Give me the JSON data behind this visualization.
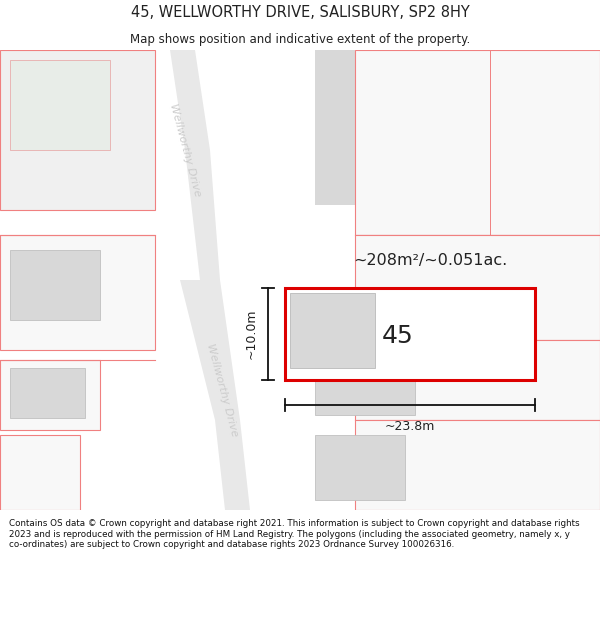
{
  "title_line1": "45, WELLWORTHY DRIVE, SALISBURY, SP2 8HY",
  "title_line2": "Map shows position and indicative extent of the property.",
  "footer_text": "Contains OS data © Crown copyright and database right 2021. This information is subject to Crown copyright and database rights 2023 and is reproduced with the permission of HM Land Registry. The polygons (including the associated geometry, namely x, y co-ordinates) are subject to Crown copyright and database rights 2023 Ordnance Survey 100026316.",
  "bg_color": "#ffffff",
  "area_text": "~208m²/~0.051ac.",
  "width_text": "~23.8m",
  "height_text": "~10.0m",
  "parcel_label": "45",
  "road_color": "#e8e8e8",
  "building_fill": "#d8d8d8",
  "building_stroke": "#c0c0c0",
  "plot_stroke": "#f08080",
  "plot_stroke_light": "#e8a0a0",
  "green_fill": "#e8f0e8",
  "prop_stroke": "#dd0000",
  "dim_color": "#111111",
  "road_label_color": "#cccccc",
  "title_color": "#222222",
  "footer_color": "#111111"
}
